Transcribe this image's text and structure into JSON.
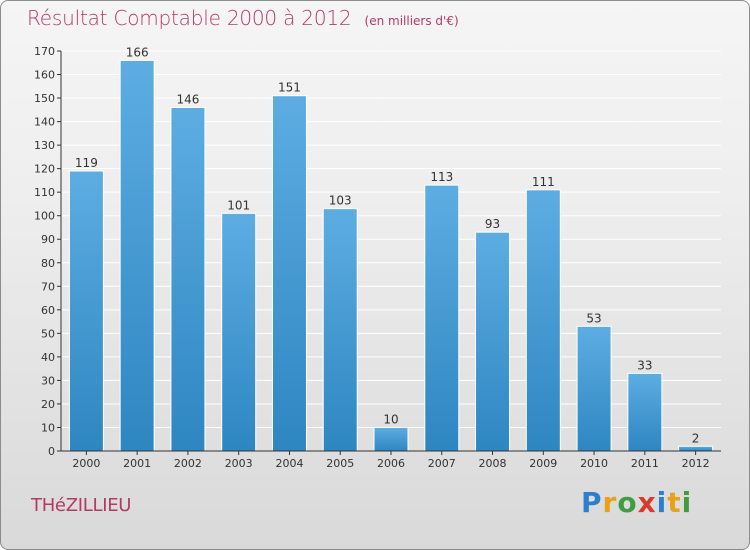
{
  "title": "Résultat Comptable 2000 à 2012",
  "unit": "(en milliers d'€)",
  "town": "THéZILLIEU",
  "brand": [
    "P",
    "r",
    "o",
    "x",
    "i",
    "t",
    "i"
  ],
  "colors": {
    "bar_top": "#5dade2",
    "bar_bottom": "#2e86c1",
    "title": "#b23a63",
    "axis": "#333333",
    "grid": "#ffffff"
  },
  "chart_data": {
    "type": "bar",
    "categories": [
      "2000",
      "2001",
      "2002",
      "2003",
      "2004",
      "2005",
      "2006",
      "2007",
      "2008",
      "2009",
      "2010",
      "2011",
      "2012"
    ],
    "values": [
      119,
      166,
      146,
      101,
      151,
      103,
      10,
      113,
      93,
      111,
      53,
      33,
      2
    ],
    "ylim": [
      0,
      170
    ],
    "yticks": [
      0,
      10,
      20,
      30,
      40,
      50,
      60,
      70,
      80,
      90,
      100,
      110,
      120,
      130,
      140,
      150,
      160,
      170
    ],
    "grid": true,
    "data_labels": true
  }
}
